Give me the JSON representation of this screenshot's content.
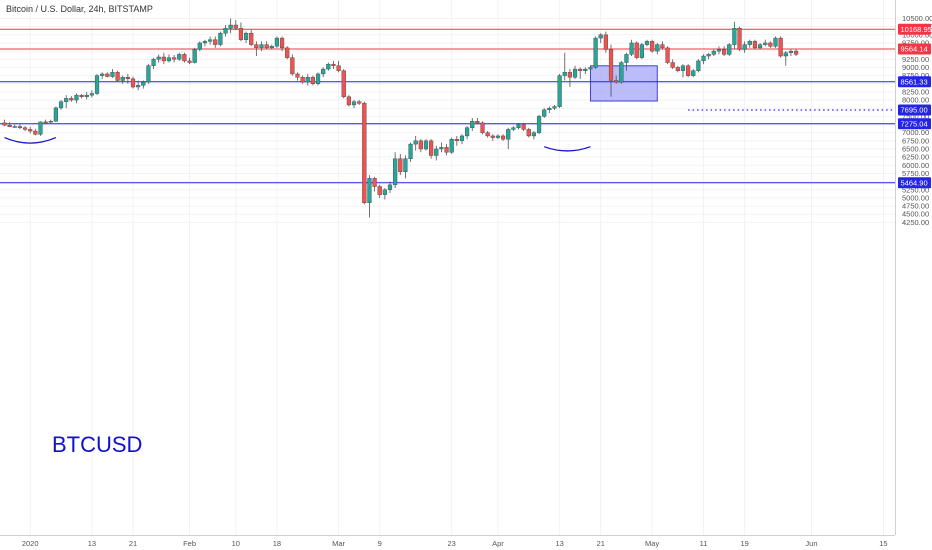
{
  "header": {
    "symbol_title": "Bitcoin / U.S. Dollar, 24h, BITSTAMP"
  },
  "watermark_label": "BTCUSD",
  "colors": {
    "up": "#26a69a",
    "down": "#ef5350",
    "resistance": "#f23645",
    "support": "#2424e8",
    "box_fill": "#a6a6f5",
    "box_stroke": "#4040e0",
    "arc": "#1515c8"
  },
  "chart_data": {
    "type": "candlestick",
    "ylim": [
      4200,
      10650
    ],
    "y_ticks": [
      "10500.00",
      "10250.00",
      "10000.00",
      "9750.00",
      "9500.00",
      "9250.00",
      "9000.00",
      "8750.00",
      "8500.00",
      "8250.00",
      "8000.00",
      "7750.00",
      "7500.00",
      "7250.00",
      "7000.00",
      "6750.00",
      "6500.00",
      "6250.00",
      "6000.00",
      "5750.00",
      "5500.00",
      "5250.00",
      "5000.00",
      "4750.00",
      "4500.00",
      "4250.00"
    ],
    "x_ticks": [
      {
        "label": "2020",
        "day": 0
      },
      {
        "label": "13",
        "day": 12
      },
      {
        "label": "21",
        "day": 20
      },
      {
        "label": "Feb",
        "day": 31
      },
      {
        "label": "10",
        "day": 40
      },
      {
        "label": "18",
        "day": 48
      },
      {
        "label": "Mar",
        "day": 60
      },
      {
        "label": "9",
        "day": 68
      },
      {
        "label": "23",
        "day": 82
      },
      {
        "label": "Apr",
        "day": 91
      },
      {
        "label": "13",
        "day": 103
      },
      {
        "label": "21",
        "day": 111
      },
      {
        "label": "May",
        "day": 121
      },
      {
        "label": "11",
        "day": 131
      },
      {
        "label": "19",
        "day": 139
      },
      {
        "label": "Jun",
        "day": 152
      },
      {
        "label": "15",
        "day": 166
      }
    ],
    "x_start_day": -5,
    "levels": [
      {
        "label": "10168.95",
        "value": 10168.95,
        "kind": "resistance"
      },
      {
        "label": "9564.14",
        "value": 9564.14,
        "kind": "resistance"
      },
      {
        "label": "8561.33",
        "value": 8561.33,
        "kind": "support"
      },
      {
        "label": "7275.04",
        "value": 7275.04,
        "kind": "support"
      },
      {
        "label": "5464.90",
        "value": 5464.9,
        "kind": "support"
      }
    ],
    "dotted_level": {
      "label": "7695.00",
      "value": 7695.0,
      "from_day": 128
    },
    "box": {
      "from_day": 109,
      "to_day": 122,
      "high": 9050,
      "low": 7970
    },
    "arcs": [
      {
        "from_day": -5,
        "to_day": 5,
        "top": 6850,
        "bottom": 6680
      },
      {
        "from_day": 100,
        "to_day": 109,
        "top": 6570,
        "bottom": 6440
      }
    ],
    "candles": [
      [
        7300,
        7400,
        7200,
        7230
      ],
      [
        7230,
        7320,
        7170,
        7180
      ],
      [
        7180,
        7250,
        7150,
        7190
      ],
      [
        7190,
        7260,
        7110,
        7150
      ],
      [
        7150,
        7200,
        7050,
        7100
      ],
      [
        7100,
        7180,
        6980,
        7050
      ],
      [
        7050,
        7120,
        6920,
        6950
      ],
      [
        6950,
        7350,
        6900,
        7330
      ],
      [
        7330,
        7400,
        7290,
        7320
      ],
      [
        7320,
        7400,
        7300,
        7350
      ],
      [
        7350,
        7800,
        7330,
        7760
      ],
      [
        7760,
        8000,
        7700,
        7950
      ],
      [
        7950,
        8150,
        7750,
        8050
      ],
      [
        8050,
        8120,
        7950,
        8000
      ],
      [
        8000,
        8200,
        7900,
        8150
      ],
      [
        8150,
        8180,
        8050,
        8100
      ],
      [
        8100,
        8250,
        8020,
        8150
      ],
      [
        8150,
        8300,
        8080,
        8200
      ],
      [
        8200,
        8800,
        8150,
        8750
      ],
      [
        8750,
        8850,
        8650,
        8800
      ],
      [
        8800,
        8850,
        8700,
        8720
      ],
      [
        8720,
        8950,
        8680,
        8850
      ],
      [
        8850,
        8900,
        8550,
        8600
      ],
      [
        8600,
        8750,
        8500,
        8700
      ],
      [
        8700,
        8800,
        8500,
        8650
      ],
      [
        8650,
        8720,
        8350,
        8400
      ],
      [
        8400,
        8600,
        8300,
        8450
      ],
      [
        8450,
        8600,
        8350,
        8550
      ],
      [
        8550,
        9100,
        8500,
        9050
      ],
      [
        9050,
        9300,
        8950,
        9250
      ],
      [
        9250,
        9400,
        9150,
        9320
      ],
      [
        9320,
        9450,
        9100,
        9200
      ],
      [
        9200,
        9400,
        9150,
        9300
      ],
      [
        9300,
        9380,
        9150,
        9250
      ],
      [
        9250,
        9450,
        9200,
        9400
      ],
      [
        9400,
        9450,
        9150,
        9200
      ],
      [
        9200,
        9300,
        9100,
        9150
      ],
      [
        9150,
        9600,
        9120,
        9550
      ],
      [
        9550,
        9800,
        9500,
        9750
      ],
      [
        9750,
        9850,
        9650,
        9800
      ],
      [
        9800,
        9950,
        9700,
        9850
      ],
      [
        9850,
        9950,
        9600,
        9700
      ],
      [
        9700,
        10100,
        9650,
        10050
      ],
      [
        10050,
        10300,
        9950,
        10200
      ],
      [
        10200,
        10500,
        10050,
        10300
      ],
      [
        10300,
        10450,
        10150,
        10200
      ],
      [
        10200,
        10380,
        9800,
        9850
      ],
      [
        9850,
        10100,
        9750,
        10050
      ],
      [
        10050,
        10150,
        9650,
        9700
      ],
      [
        9700,
        9800,
        9350,
        9600
      ],
      [
        9600,
        9800,
        9500,
        9700
      ],
      [
        9700,
        9800,
        9550,
        9600
      ],
      [
        9600,
        9700,
        9550,
        9650
      ],
      [
        9650,
        9950,
        9600,
        9900
      ],
      [
        9900,
        9950,
        9500,
        9600
      ],
      [
        9600,
        9650,
        9250,
        9300
      ],
      [
        9300,
        9400,
        8750,
        8800
      ],
      [
        8800,
        8850,
        8600,
        8700
      ],
      [
        8700,
        8750,
        8500,
        8550
      ],
      [
        8550,
        8800,
        8450,
        8700
      ],
      [
        8700,
        8750,
        8450,
        8500
      ],
      [
        8500,
        8850,
        8450,
        8800
      ],
      [
        8800,
        9000,
        8700,
        8950
      ],
      [
        8950,
        9150,
        8900,
        9100
      ],
      [
        9100,
        9200,
        8950,
        9050
      ],
      [
        9050,
        9200,
        8850,
        8900
      ],
      [
        8900,
        8950,
        8050,
        8100
      ],
      [
        8100,
        8150,
        7800,
        7850
      ],
      [
        7850,
        8000,
        7750,
        7950
      ],
      [
        7950,
        8000,
        7850,
        7900
      ],
      [
        7900,
        7950,
        4800,
        4850
      ],
      [
        4850,
        5700,
        4400,
        5600
      ],
      [
        5600,
        5650,
        5200,
        5350
      ],
      [
        5350,
        5400,
        5000,
        5100
      ],
      [
        5100,
        5300,
        4950,
        5250
      ],
      [
        5250,
        5500,
        5150,
        5400
      ],
      [
        5400,
        6400,
        5300,
        6200
      ],
      [
        6200,
        6350,
        5700,
        5800
      ],
      [
        5800,
        6300,
        5600,
        6200
      ],
      [
        6200,
        6700,
        6100,
        6650
      ],
      [
        6650,
        6900,
        6450,
        6750
      ],
      [
        6750,
        6800,
        6400,
        6500
      ],
      [
        6500,
        6800,
        6450,
        6750
      ],
      [
        6750,
        6800,
        6200,
        6300
      ],
      [
        6300,
        6600,
        6150,
        6500
      ],
      [
        6500,
        6700,
        6400,
        6550
      ],
      [
        6550,
        6650,
        6300,
        6400
      ],
      [
        6400,
        6850,
        6350,
        6800
      ],
      [
        6800,
        6900,
        6600,
        6750
      ],
      [
        6750,
        6950,
        6650,
        6900
      ],
      [
        6900,
        7200,
        6800,
        7150
      ],
      [
        7150,
        7450,
        7050,
        7350
      ],
      [
        7350,
        7450,
        7250,
        7300
      ],
      [
        7300,
        7350,
        6950,
        7000
      ],
      [
        7000,
        7050,
        6850,
        6900
      ],
      [
        6900,
        6950,
        6750,
        6850
      ],
      [
        6850,
        6950,
        6800,
        6900
      ],
      [
        6900,
        6950,
        6750,
        6800
      ],
      [
        6800,
        7150,
        6500,
        7100
      ],
      [
        7100,
        7200,
        7050,
        7150
      ],
      [
        7150,
        7300,
        7100,
        7250
      ],
      [
        7250,
        7300,
        7050,
        7100
      ],
      [
        7100,
        7150,
        6850,
        6900
      ],
      [
        6900,
        7050,
        6800,
        7000
      ],
      [
        7000,
        7550,
        6950,
        7500
      ],
      [
        7500,
        7750,
        7450,
        7700
      ],
      [
        7700,
        7800,
        7600,
        7750
      ],
      [
        7750,
        7850,
        7700,
        7800
      ],
      [
        7800,
        8800,
        7750,
        8750
      ],
      [
        8750,
        9450,
        8600,
        8850
      ],
      [
        8850,
        8950,
        8400,
        8700
      ],
      [
        8700,
        9050,
        8650,
        8950
      ],
      [
        8950,
        9000,
        8650,
        8900
      ],
      [
        8900,
        9000,
        8800,
        8950
      ],
      [
        8950,
        9050,
        8850,
        9000
      ],
      [
        9000,
        9950,
        8950,
        9900
      ],
      [
        9900,
        10050,
        9750,
        10000
      ],
      [
        10000,
        10100,
        9450,
        9550
      ],
      [
        9550,
        9700,
        8100,
        8600
      ],
      [
        8600,
        8750,
        8500,
        8550
      ],
      [
        8550,
        9200,
        8500,
        9150
      ],
      [
        9150,
        9450,
        8900,
        9400
      ],
      [
        9400,
        9850,
        9350,
        9750
      ],
      [
        9750,
        9800,
        9250,
        9300
      ],
      [
        9300,
        9750,
        9250,
        9700
      ],
      [
        9700,
        9850,
        9650,
        9800
      ],
      [
        9800,
        9850,
        9450,
        9500
      ],
      [
        9500,
        9750,
        9400,
        9700
      ],
      [
        9700,
        9800,
        9550,
        9600
      ],
      [
        9600,
        9650,
        9100,
        9150
      ],
      [
        9150,
        9250,
        8950,
        9000
      ],
      [
        9000,
        9050,
        8850,
        8900
      ],
      [
        8900,
        9100,
        8700,
        9050
      ],
      [
        9050,
        9100,
        8700,
        8750
      ],
      [
        8750,
        8950,
        8700,
        8900
      ],
      [
        8900,
        9250,
        8850,
        9200
      ],
      [
        9200,
        9400,
        9100,
        9350
      ],
      [
        9350,
        9450,
        9250,
        9400
      ],
      [
        9400,
        9550,
        9350,
        9500
      ],
      [
        9500,
        9650,
        9400,
        9550
      ],
      [
        9550,
        9650,
        9350,
        9400
      ],
      [
        9400,
        9750,
        9350,
        9700
      ],
      [
        9700,
        10400,
        9550,
        10200
      ],
      [
        10200,
        10250,
        9500,
        9550
      ],
      [
        9550,
        9800,
        9450,
        9700
      ],
      [
        9700,
        9850,
        9600,
        9800
      ],
      [
        9800,
        9850,
        9550,
        9600
      ],
      [
        9600,
        9750,
        9550,
        9700
      ],
      [
        9700,
        9850,
        9650,
        9750
      ],
      [
        9750,
        9800,
        9600,
        9650
      ],
      [
        9650,
        9950,
        9600,
        9900
      ],
      [
        9900,
        9950,
        9300,
        9350
      ],
      [
        9350,
        9500,
        9050,
        9450
      ],
      [
        9450,
        9550,
        9350,
        9500
      ],
      [
        9500,
        9550,
        9350,
        9400
      ]
    ]
  }
}
